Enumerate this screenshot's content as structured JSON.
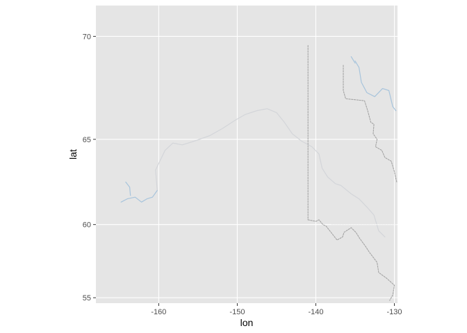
{
  "chart_data": {
    "type": "map",
    "xlabel": "lon",
    "ylabel": "lat",
    "xlim": [
      -168,
      -129.6
    ],
    "ylim": [
      54.6,
      71.3
    ],
    "x_ticks": [
      {
        "value": -160,
        "label": "-160"
      },
      {
        "value": -150,
        "label": "-150"
      },
      {
        "value": -140,
        "label": "-140"
      },
      {
        "value": -130,
        "label": "-130"
      }
    ],
    "y_ticks": [
      {
        "value": 55,
        "label": "55"
      },
      {
        "value": 60,
        "label": "60"
      },
      {
        "value": 65,
        "label": "65"
      },
      {
        "value": 70,
        "label": "70"
      }
    ],
    "grid": true,
    "colors": {
      "panel": "#e5e5e5",
      "grid": "#ffffff",
      "river_main": "#d0d3d8",
      "river_blue": "#a7c4dc",
      "border": "#a3a3a3",
      "border_light": "#f2f2f2"
    },
    "features": [
      {
        "name": "Yukon River",
        "kind": "river",
        "color": "#d3d5d9",
        "points": [
          [
            -160.2,
            62.1
          ],
          [
            -160.4,
            63.3
          ],
          [
            -159.2,
            64.4
          ],
          [
            -158.2,
            64.8
          ],
          [
            -157.0,
            64.7
          ],
          [
            -155.5,
            64.9
          ],
          [
            -153.5,
            65.2
          ],
          [
            -151.8,
            65.6
          ],
          [
            -150.3,
            66.0
          ],
          [
            -149.0,
            66.3
          ],
          [
            -147.5,
            66.5
          ],
          [
            -146.2,
            66.6
          ],
          [
            -145.0,
            66.4
          ],
          [
            -144.0,
            65.9
          ],
          [
            -143.0,
            65.3
          ],
          [
            -141.8,
            64.9
          ],
          [
            -140.5,
            64.6
          ],
          [
            -139.6,
            64.2
          ],
          [
            -139.2,
            63.4
          ],
          [
            -138.5,
            62.9
          ],
          [
            -137.5,
            62.5
          ],
          [
            -136.8,
            62.4
          ],
          [
            -135.5,
            61.9
          ],
          [
            -134.5,
            61.6
          ],
          [
            -133.5,
            61.1
          ],
          [
            -132.6,
            60.6
          ],
          [
            -132.0,
            59.6
          ],
          [
            -131.2,
            59.2
          ]
        ]
      },
      {
        "name": "Lower Yukon",
        "kind": "river",
        "color": "#a7c4dc",
        "points": [
          [
            -164.8,
            61.4
          ],
          [
            -164.0,
            61.6
          ],
          [
            -163.0,
            61.7
          ],
          [
            -162.2,
            61.4
          ],
          [
            -161.5,
            61.6
          ],
          [
            -160.8,
            61.7
          ],
          [
            -160.2,
            62.1
          ]
        ]
      },
      {
        "name": "Lower Yukon branch",
        "kind": "river",
        "color": "#a7c4dc",
        "points": [
          [
            -164.2,
            62.6
          ],
          [
            -163.7,
            62.3
          ],
          [
            -163.6,
            61.8
          ]
        ]
      },
      {
        "name": "Northern river",
        "kind": "river",
        "color": "#a7c4dc",
        "points": [
          [
            -135.0,
            68.9
          ],
          [
            -134.5,
            68.6
          ],
          [
            -134.2,
            67.9
          ],
          [
            -133.5,
            67.4
          ],
          [
            -132.5,
            67.2
          ],
          [
            -131.5,
            67.6
          ],
          [
            -130.7,
            67.5
          ],
          [
            -130.2,
            66.7
          ],
          [
            -129.8,
            66.5
          ]
        ]
      },
      {
        "name": "Northern river branch",
        "kind": "river",
        "color": "#a7c4dc",
        "points": [
          [
            -135.5,
            69.1
          ],
          [
            -135.0,
            68.8
          ]
        ]
      },
      {
        "name": "Alaska-Yukon border (141 W meridian)",
        "kind": "border",
        "color": "#a3a3a3",
        "dashed": true,
        "points": [
          [
            -141.0,
            69.6
          ],
          [
            -141.0,
            60.3
          ]
        ]
      },
      {
        "name": "Southeast Alaska panhandle border",
        "kind": "border",
        "color": "#a3a3a3",
        "dashed": true,
        "points": [
          [
            -141.0,
            60.3
          ],
          [
            -140.0,
            60.2
          ],
          [
            -139.6,
            60.3
          ],
          [
            -139.1,
            60.0
          ],
          [
            -138.7,
            59.9
          ],
          [
            -137.6,
            59.2
          ],
          [
            -137.3,
            59.0
          ],
          [
            -136.6,
            59.2
          ],
          [
            -136.4,
            59.5
          ],
          [
            -135.5,
            59.8
          ],
          [
            -134.9,
            59.5
          ],
          [
            -134.4,
            59.1
          ],
          [
            -133.7,
            58.6
          ],
          [
            -133.2,
            58.2
          ],
          [
            -132.2,
            57.5
          ],
          [
            -132.0,
            56.8
          ],
          [
            -131.0,
            56.4
          ],
          [
            -130.4,
            56.1
          ],
          [
            -130.0,
            55.9
          ],
          [
            -130.2,
            55.2
          ],
          [
            -130.6,
            54.8
          ]
        ]
      },
      {
        "name": "Yukon-NWT border",
        "kind": "border",
        "color": "#a3a3a3",
        "dashed": true,
        "points": [
          [
            -136.5,
            68.7
          ],
          [
            -136.5,
            67.5
          ],
          [
            -136.2,
            67.1
          ],
          [
            -133.8,
            67.0
          ],
          [
            -133.4,
            66.5
          ],
          [
            -133.0,
            65.9
          ],
          [
            -132.6,
            65.8
          ],
          [
            -132.7,
            65.3
          ],
          [
            -132.2,
            65.0
          ],
          [
            -132.4,
            64.6
          ],
          [
            -131.6,
            64.4
          ],
          [
            -131.2,
            64.0
          ],
          [
            -130.4,
            63.8
          ],
          [
            -130.0,
            63.2
          ],
          [
            -129.7,
            62.6
          ]
        ]
      },
      {
        "name": "60 N boundary",
        "kind": "border",
        "color": "#f2f2f2",
        "dashed": true,
        "points": [
          [
            -138.0,
            60.0
          ],
          [
            -129.7,
            60.0
          ]
        ]
      }
    ]
  }
}
